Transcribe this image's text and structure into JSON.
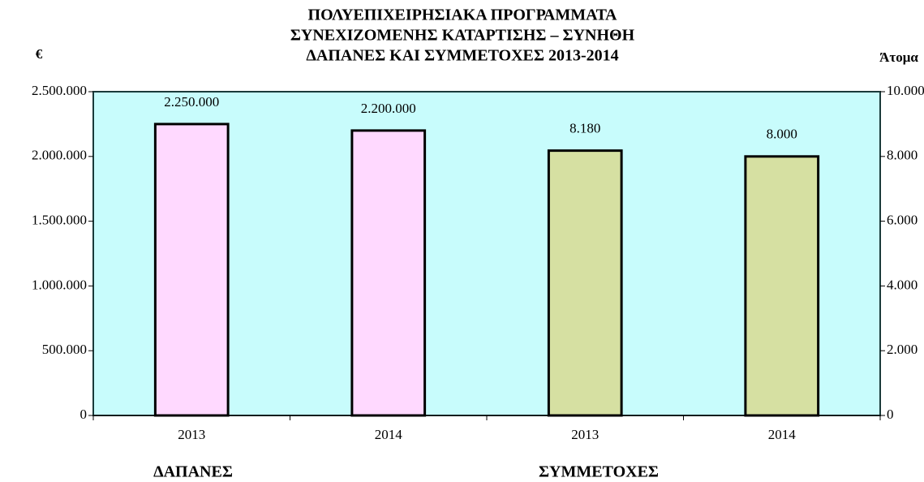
{
  "chart_data": {
    "type": "bar",
    "title": [
      "ΠΟΛΥΕΠΙΧΕΙΡΗΣΙΑΚΑ ΠΡΟΓΡΑΜΜΑΤΑ",
      "ΣΥΝΕΧΙΖΟΜΕΝΗΣ ΚΑΤΑΡΤΙΣΗΣ – ΣΥΝΗΘΗ",
      "ΔΑΠΑΝΕΣ ΚΑΙ ΣΥΜΜΕΤΟΧΕΣ 2013-2014"
    ],
    "y_label": "€",
    "y2_label": "Άτομα",
    "categories": [
      "2013",
      "2014",
      "2013",
      "2014"
    ],
    "series": [
      {
        "name": "ΔΑΠΑΝΕΣ",
        "color": "#ffd9ff",
        "axis": "y",
        "values": [
          2250000,
          2200000,
          null,
          null
        ],
        "value_labels": [
          "2.250.000",
          "2.200.000",
          null,
          null
        ]
      },
      {
        "name": "ΣΥΜΜΕΤΟΧΕΣ",
        "color": "#d6e0a2",
        "axis": "y2",
        "values": [
          null,
          null,
          8180,
          8000
        ],
        "value_labels": [
          null,
          null,
          "8.180",
          "8.000"
        ]
      }
    ],
    "ylim": [
      0,
      2500000
    ],
    "yticks": [
      0,
      {
        "value": 500000,
        "label": "500.000"
      },
      {
        "value": 1000000,
        "label": "1.000.000"
      },
      {
        "value": 1500000,
        "label": "1.500.000"
      },
      {
        "value": 2000000,
        "label": "2.000.000"
      },
      {
        "value": 2500000,
        "label": "2.500.000"
      }
    ],
    "y2lim": [
      0,
      10000
    ],
    "y2ticks": [
      0,
      {
        "value": 2000,
        "label": "2.000"
      },
      {
        "value": 4000,
        "label": "4.000"
      },
      {
        "value": 6000,
        "label": "6.000"
      },
      {
        "value": 8000,
        "label": "8.000"
      },
      {
        "value": 10000,
        "label": "10.000"
      }
    ],
    "plot_background": "#c8fcfc"
  }
}
